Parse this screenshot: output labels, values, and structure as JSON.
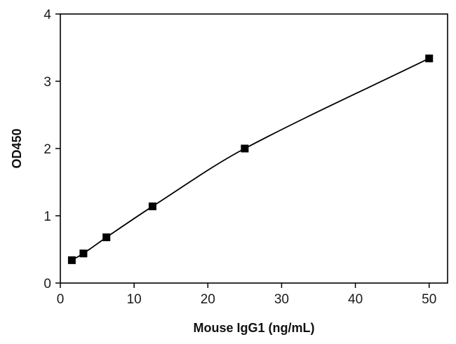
{
  "chart_data": {
    "type": "scatter",
    "title": "",
    "xlabel": "Mouse IgG1 (ng/mL)",
    "ylabel": "OD450",
    "xlim": [
      0,
      52.5
    ],
    "ylim": [
      0,
      4
    ],
    "x_ticks": [
      0,
      10,
      20,
      30,
      40,
      50
    ],
    "y_ticks": [
      0,
      1,
      2,
      3,
      4
    ],
    "grid": false,
    "legend": "none",
    "series": [
      {
        "x": [
          1.56,
          3.13,
          6.25,
          12.5,
          25,
          50
        ],
        "y": [
          0.34,
          0.44,
          0.68,
          1.14,
          2.0,
          3.34
        ],
        "marker": "square",
        "fit_line": true,
        "color": "#000000"
      }
    ]
  }
}
